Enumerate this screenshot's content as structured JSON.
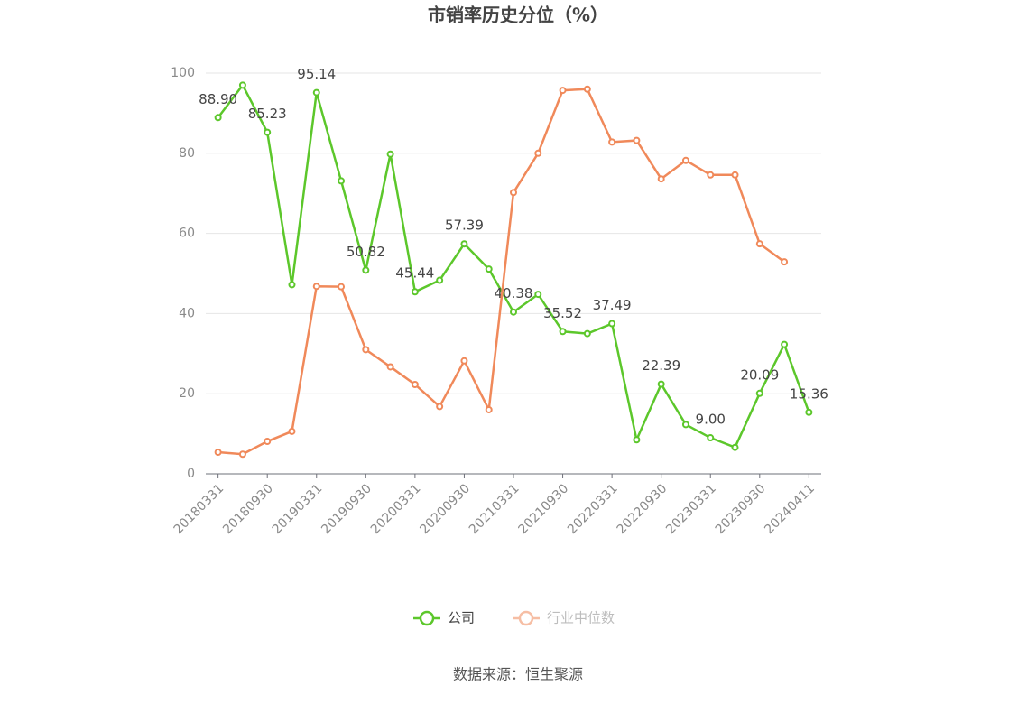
{
  "chart_data": {
    "type": "line",
    "title": "市销率历史分位（%）",
    "categories": [
      "20180331",
      null,
      "20180930",
      null,
      "20190331",
      null,
      "20190930",
      null,
      "20200331",
      null,
      "20200930",
      null,
      "20210331",
      null,
      "20210930",
      null,
      "20220331",
      null,
      "20220930",
      null,
      "20230331",
      null,
      "20230930",
      null,
      "20240411"
    ],
    "series": [
      {
        "name": "公司",
        "color": "#5cc72b",
        "values": [
          88.9,
          97,
          85.23,
          47.2,
          95.14,
          73.1,
          50.82,
          79.8,
          45.44,
          48.3,
          57.39,
          51.1,
          40.38,
          44.8,
          35.52,
          35.0,
          37.49,
          8.5,
          22.39,
          12.3,
          9.0,
          6.6,
          20.09,
          32.3,
          15.36
        ],
        "value_labels": [
          "88.90",
          null,
          "85.23",
          null,
          "95.14",
          null,
          "50.82",
          null,
          "45.44",
          null,
          "57.39",
          null,
          "40.38",
          null,
          "35.52",
          null,
          "37.49",
          null,
          "22.39",
          null,
          "9.00",
          null,
          "20.09",
          null,
          "15.36"
        ]
      },
      {
        "name": "行业中位数",
        "color": "#f0895a",
        "values": [
          5.4,
          4.9,
          8.1,
          10.6,
          46.8,
          46.7,
          31.0,
          26.7,
          22.3,
          16.8,
          28.2,
          16.0,
          70.2,
          80.0,
          95.7,
          96.0,
          82.8,
          83.2,
          73.6,
          78.2,
          74.6,
          74.6,
          57.4,
          52.9,
          null
        ]
      }
    ],
    "ylim": [
      0,
      100
    ],
    "yticks": [
      0,
      20,
      40,
      60,
      80,
      100
    ],
    "grid": true,
    "source": "数据来源：恒生聚源"
  }
}
